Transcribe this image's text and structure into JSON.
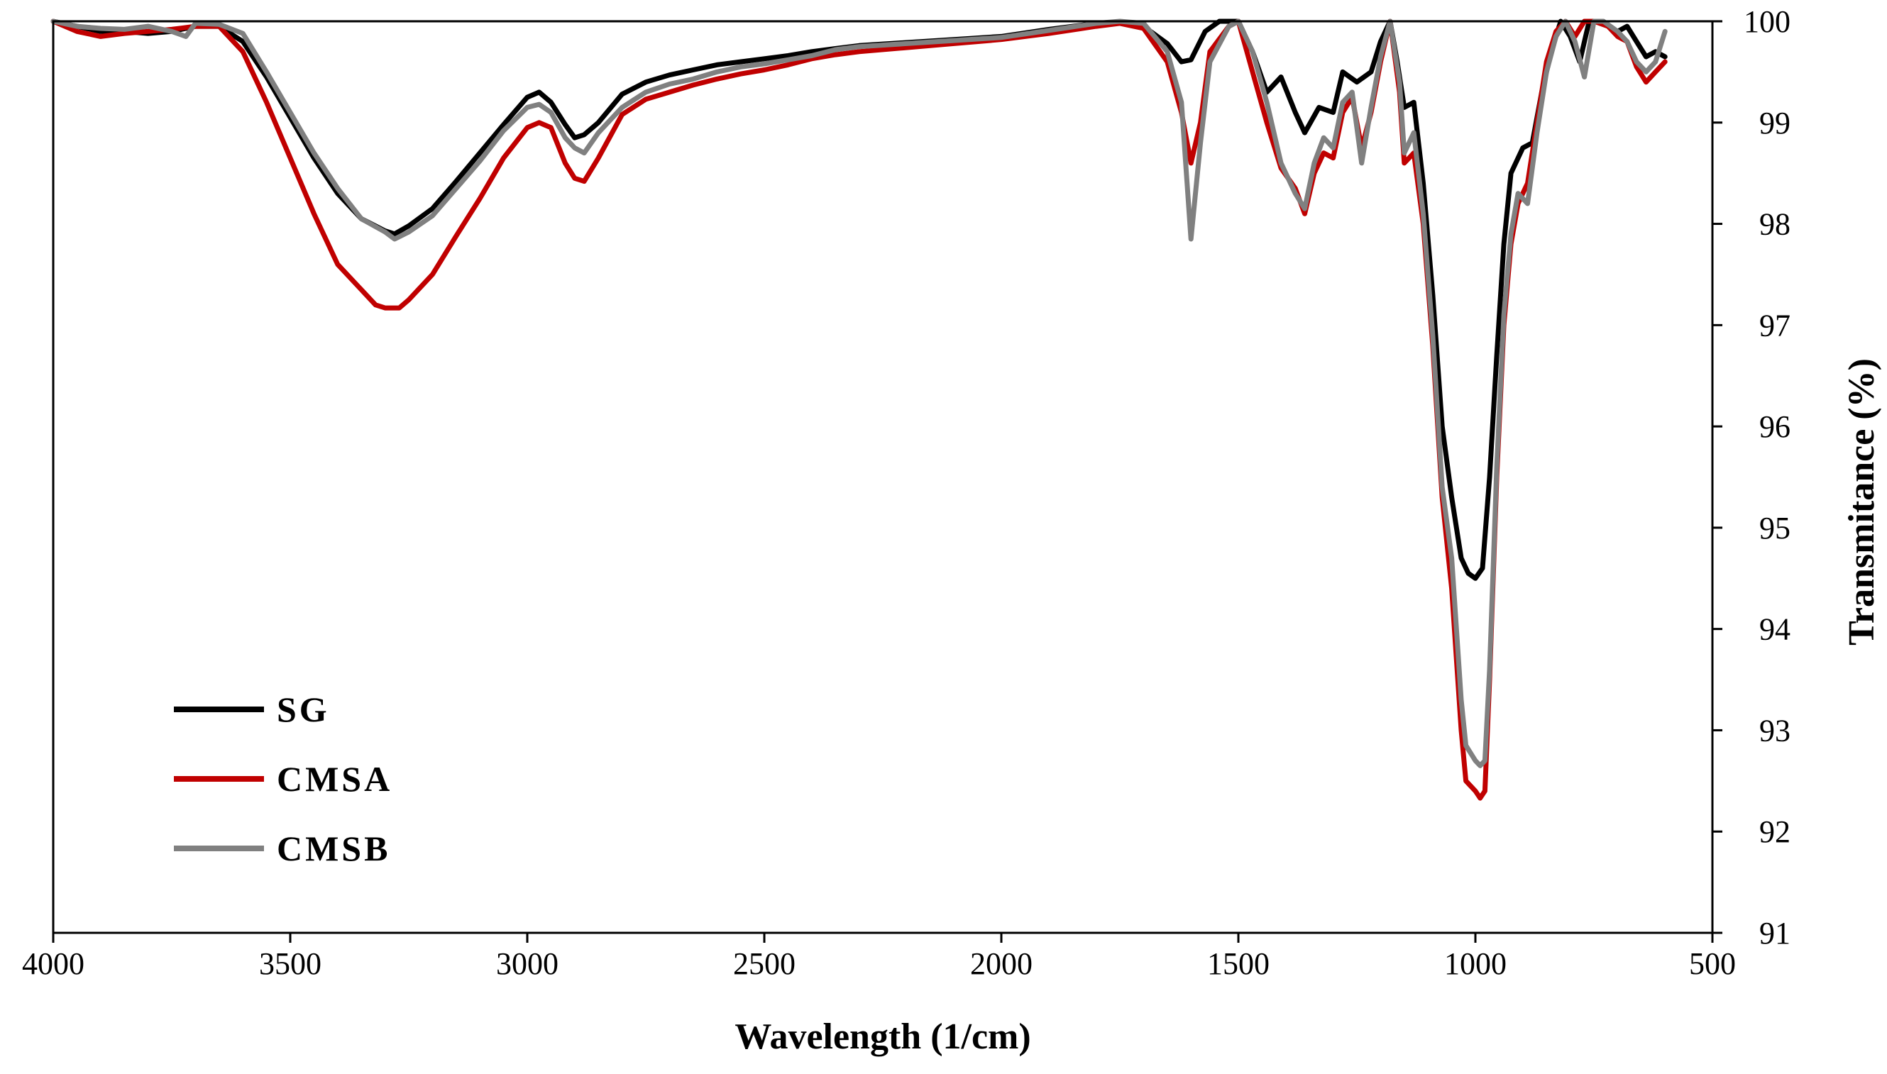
{
  "chart_data": {
    "type": "line",
    "title": "",
    "xlabel": "Wavelength (1/cm)",
    "ylabel": "Transmitance (%)",
    "xlim": [
      4000,
      500
    ],
    "ylim": [
      91,
      100
    ],
    "xticks": [
      4000,
      3500,
      3000,
      2500,
      2000,
      1500,
      1000,
      500
    ],
    "yticks": [
      91,
      92,
      93,
      94,
      95,
      96,
      97,
      98,
      99,
      100
    ],
    "y_axis_side": "right",
    "grid": false,
    "legend_position": "bottom-left",
    "series": [
      {
        "name": "SG",
        "color": "#000000",
        "points": [
          [
            4000,
            100.0
          ],
          [
            3950,
            99.95
          ],
          [
            3900,
            99.9
          ],
          [
            3850,
            99.9
          ],
          [
            3800,
            99.88
          ],
          [
            3750,
            99.9
          ],
          [
            3700,
            99.95
          ],
          [
            3650,
            99.95
          ],
          [
            3600,
            99.8
          ],
          [
            3550,
            99.45
          ],
          [
            3500,
            99.05
          ],
          [
            3450,
            98.65
          ],
          [
            3400,
            98.3
          ],
          [
            3350,
            98.05
          ],
          [
            3300,
            97.93
          ],
          [
            3280,
            97.9
          ],
          [
            3250,
            97.98
          ],
          [
            3200,
            98.15
          ],
          [
            3150,
            98.42
          ],
          [
            3100,
            98.7
          ],
          [
            3050,
            98.98
          ],
          [
            3000,
            99.25
          ],
          [
            2975,
            99.3
          ],
          [
            2950,
            99.2
          ],
          [
            2920,
            98.98
          ],
          [
            2900,
            98.85
          ],
          [
            2880,
            98.88
          ],
          [
            2850,
            99.0
          ],
          [
            2800,
            99.28
          ],
          [
            2750,
            99.4
          ],
          [
            2700,
            99.47
          ],
          [
            2650,
            99.52
          ],
          [
            2600,
            99.57
          ],
          [
            2550,
            99.6
          ],
          [
            2500,
            99.63
          ],
          [
            2450,
            99.66
          ],
          [
            2400,
            99.7
          ],
          [
            2350,
            99.73
          ],
          [
            2300,
            99.76
          ],
          [
            2200,
            99.79
          ],
          [
            2100,
            99.82
          ],
          [
            2000,
            99.85
          ],
          [
            1900,
            99.92
          ],
          [
            1800,
            99.98
          ],
          [
            1750,
            99.99
          ],
          [
            1700,
            99.95
          ],
          [
            1650,
            99.78
          ],
          [
            1620,
            99.6
          ],
          [
            1600,
            99.62
          ],
          [
            1570,
            99.9
          ],
          [
            1540,
            100.0
          ],
          [
            1500,
            100.0
          ],
          [
            1470,
            99.7
          ],
          [
            1440,
            99.3
          ],
          [
            1410,
            99.45
          ],
          [
            1380,
            99.1
          ],
          [
            1360,
            98.9
          ],
          [
            1330,
            99.15
          ],
          [
            1300,
            99.1
          ],
          [
            1280,
            99.5
          ],
          [
            1250,
            99.4
          ],
          [
            1220,
            99.5
          ],
          [
            1200,
            99.8
          ],
          [
            1180,
            100.0
          ],
          [
            1165,
            99.6
          ],
          [
            1150,
            99.15
          ],
          [
            1130,
            99.2
          ],
          [
            1110,
            98.4
          ],
          [
            1090,
            97.3
          ],
          [
            1070,
            96.0
          ],
          [
            1050,
            95.3
          ],
          [
            1030,
            94.7
          ],
          [
            1015,
            94.55
          ],
          [
            1000,
            94.5
          ],
          [
            985,
            94.6
          ],
          [
            970,
            95.5
          ],
          [
            955,
            96.7
          ],
          [
            940,
            97.8
          ],
          [
            925,
            98.5
          ],
          [
            900,
            98.75
          ],
          [
            880,
            98.8
          ],
          [
            860,
            99.3
          ],
          [
            840,
            99.7
          ],
          [
            820,
            100.0
          ],
          [
            800,
            99.85
          ],
          [
            780,
            99.6
          ],
          [
            760,
            100.0
          ],
          [
            740,
            100.0
          ],
          [
            720,
            99.95
          ],
          [
            700,
            99.9
          ],
          [
            680,
            99.95
          ],
          [
            660,
            99.8
          ],
          [
            640,
            99.65
          ],
          [
            620,
            99.7
          ],
          [
            600,
            99.65
          ]
        ]
      },
      {
        "name": "CMSA",
        "color": "#c00000",
        "points": [
          [
            4000,
            100.0
          ],
          [
            3950,
            99.9
          ],
          [
            3900,
            99.85
          ],
          [
            3850,
            99.88
          ],
          [
            3800,
            99.9
          ],
          [
            3750,
            99.92
          ],
          [
            3700,
            99.95
          ],
          [
            3650,
            99.95
          ],
          [
            3600,
            99.7
          ],
          [
            3550,
            99.2
          ],
          [
            3500,
            98.65
          ],
          [
            3450,
            98.1
          ],
          [
            3400,
            97.6
          ],
          [
            3350,
            97.35
          ],
          [
            3320,
            97.2
          ],
          [
            3300,
            97.17
          ],
          [
            3270,
            97.17
          ],
          [
            3250,
            97.25
          ],
          [
            3200,
            97.5
          ],
          [
            3150,
            97.88
          ],
          [
            3100,
            98.25
          ],
          [
            3050,
            98.65
          ],
          [
            3000,
            98.95
          ],
          [
            2975,
            99.0
          ],
          [
            2950,
            98.95
          ],
          [
            2920,
            98.6
          ],
          [
            2900,
            98.45
          ],
          [
            2880,
            98.42
          ],
          [
            2850,
            98.65
          ],
          [
            2800,
            99.08
          ],
          [
            2750,
            99.23
          ],
          [
            2700,
            99.3
          ],
          [
            2650,
            99.37
          ],
          [
            2600,
            99.43
          ],
          [
            2550,
            99.48
          ],
          [
            2500,
            99.52
          ],
          [
            2450,
            99.57
          ],
          [
            2400,
            99.63
          ],
          [
            2350,
            99.67
          ],
          [
            2300,
            99.7
          ],
          [
            2200,
            99.74
          ],
          [
            2100,
            99.78
          ],
          [
            2000,
            99.82
          ],
          [
            1900,
            99.88
          ],
          [
            1800,
            99.95
          ],
          [
            1750,
            99.98
          ],
          [
            1700,
            99.93
          ],
          [
            1650,
            99.6
          ],
          [
            1620,
            99.1
          ],
          [
            1600,
            98.6
          ],
          [
            1580,
            99.0
          ],
          [
            1560,
            99.7
          ],
          [
            1520,
            99.95
          ],
          [
            1500,
            100.0
          ],
          [
            1470,
            99.5
          ],
          [
            1440,
            99.0
          ],
          [
            1410,
            98.55
          ],
          [
            1380,
            98.35
          ],
          [
            1360,
            98.1
          ],
          [
            1340,
            98.5
          ],
          [
            1320,
            98.7
          ],
          [
            1300,
            98.65
          ],
          [
            1280,
            99.1
          ],
          [
            1260,
            99.25
          ],
          [
            1240,
            98.75
          ],
          [
            1220,
            99.1
          ],
          [
            1200,
            99.6
          ],
          [
            1180,
            100.0
          ],
          [
            1160,
            99.3
          ],
          [
            1150,
            98.6
          ],
          [
            1130,
            98.7
          ],
          [
            1110,
            98.0
          ],
          [
            1090,
            96.8
          ],
          [
            1070,
            95.3
          ],
          [
            1050,
            94.4
          ],
          [
            1030,
            93.0
          ],
          [
            1020,
            92.5
          ],
          [
            1000,
            92.4
          ],
          [
            990,
            92.33
          ],
          [
            980,
            92.4
          ],
          [
            970,
            93.5
          ],
          [
            955,
            95.5
          ],
          [
            940,
            97.0
          ],
          [
            925,
            97.8
          ],
          [
            910,
            98.2
          ],
          [
            890,
            98.4
          ],
          [
            870,
            99.0
          ],
          [
            850,
            99.6
          ],
          [
            830,
            99.9
          ],
          [
            810,
            100.0
          ],
          [
            790,
            99.85
          ],
          [
            770,
            100.0
          ],
          [
            750,
            100.0
          ],
          [
            720,
            99.95
          ],
          [
            700,
            99.85
          ],
          [
            680,
            99.8
          ],
          [
            660,
            99.55
          ],
          [
            640,
            99.4
          ],
          [
            620,
            99.5
          ],
          [
            600,
            99.6
          ]
        ]
      },
      {
        "name": "CMSB",
        "color": "#808080",
        "points": [
          [
            4000,
            100.0
          ],
          [
            3950,
            99.95
          ],
          [
            3900,
            99.93
          ],
          [
            3850,
            99.92
          ],
          [
            3800,
            99.95
          ],
          [
            3750,
            99.9
          ],
          [
            3720,
            99.85
          ],
          [
            3700,
            99.98
          ],
          [
            3650,
            99.97
          ],
          [
            3600,
            99.88
          ],
          [
            3550,
            99.5
          ],
          [
            3500,
            99.1
          ],
          [
            3450,
            98.7
          ],
          [
            3400,
            98.35
          ],
          [
            3350,
            98.05
          ],
          [
            3300,
            97.92
          ],
          [
            3280,
            97.85
          ],
          [
            3250,
            97.92
          ],
          [
            3200,
            98.08
          ],
          [
            3150,
            98.35
          ],
          [
            3100,
            98.62
          ],
          [
            3050,
            98.92
          ],
          [
            3000,
            99.15
          ],
          [
            2975,
            99.18
          ],
          [
            2950,
            99.1
          ],
          [
            2920,
            98.85
          ],
          [
            2900,
            98.75
          ],
          [
            2880,
            98.7
          ],
          [
            2850,
            98.9
          ],
          [
            2800,
            99.15
          ],
          [
            2750,
            99.3
          ],
          [
            2700,
            99.38
          ],
          [
            2650,
            99.43
          ],
          [
            2600,
            99.5
          ],
          [
            2550,
            99.55
          ],
          [
            2500,
            99.58
          ],
          [
            2450,
            99.62
          ],
          [
            2400,
            99.66
          ],
          [
            2350,
            99.72
          ],
          [
            2300,
            99.75
          ],
          [
            2200,
            99.78
          ],
          [
            2100,
            99.81
          ],
          [
            2000,
            99.84
          ],
          [
            1900,
            99.91
          ],
          [
            1800,
            99.98
          ],
          [
            1750,
            100.0
          ],
          [
            1700,
            99.98
          ],
          [
            1650,
            99.7
          ],
          [
            1620,
            99.2
          ],
          [
            1600,
            97.85
          ],
          [
            1580,
            98.8
          ],
          [
            1560,
            99.6
          ],
          [
            1520,
            99.95
          ],
          [
            1500,
            100.0
          ],
          [
            1470,
            99.7
          ],
          [
            1440,
            99.2
          ],
          [
            1410,
            98.6
          ],
          [
            1380,
            98.3
          ],
          [
            1360,
            98.15
          ],
          [
            1340,
            98.6
          ],
          [
            1320,
            98.85
          ],
          [
            1300,
            98.75
          ],
          [
            1280,
            99.2
          ],
          [
            1260,
            99.3
          ],
          [
            1240,
            98.6
          ],
          [
            1220,
            99.15
          ],
          [
            1200,
            99.65
          ],
          [
            1180,
            100.0
          ],
          [
            1160,
            99.4
          ],
          [
            1150,
            98.7
          ],
          [
            1130,
            98.9
          ],
          [
            1110,
            98.1
          ],
          [
            1090,
            96.9
          ],
          [
            1070,
            95.4
          ],
          [
            1050,
            94.7
          ],
          [
            1030,
            93.3
          ],
          [
            1020,
            92.85
          ],
          [
            1000,
            92.7
          ],
          [
            990,
            92.65
          ],
          [
            980,
            92.7
          ],
          [
            970,
            93.6
          ],
          [
            955,
            95.6
          ],
          [
            940,
            97.1
          ],
          [
            925,
            97.9
          ],
          [
            910,
            98.3
          ],
          [
            890,
            98.2
          ],
          [
            870,
            98.9
          ],
          [
            850,
            99.5
          ],
          [
            830,
            99.85
          ],
          [
            810,
            100.0
          ],
          [
            790,
            99.8
          ],
          [
            770,
            99.45
          ],
          [
            750,
            100.0
          ],
          [
            730,
            100.0
          ],
          [
            700,
            99.9
          ],
          [
            680,
            99.8
          ],
          [
            660,
            99.6
          ],
          [
            640,
            99.5
          ],
          [
            620,
            99.6
          ],
          [
            600,
            99.9
          ]
        ]
      }
    ]
  }
}
